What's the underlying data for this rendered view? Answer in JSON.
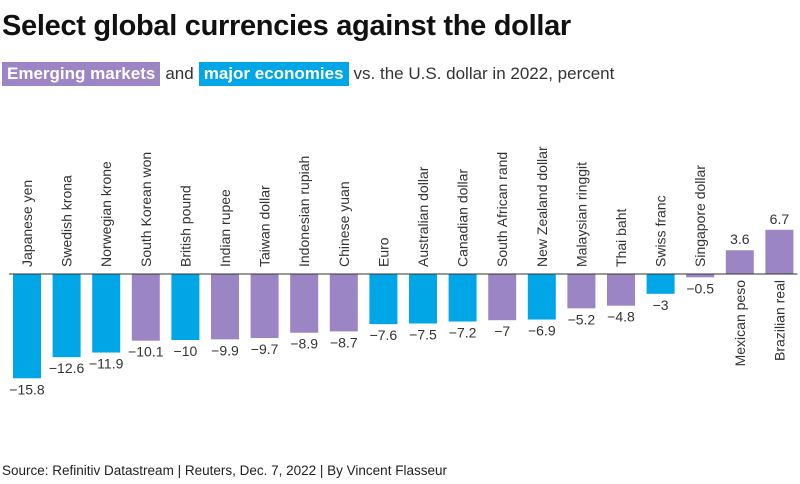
{
  "title": "Select global currencies against the dollar",
  "subtitle": {
    "emerging_label": "Emerging markets",
    "connector": "and",
    "major_label": "major economies",
    "rest": "vs. the U.S. dollar in 2022, percent"
  },
  "source": "Source: Refinitiv Datastream | Reuters, Dec. 7, 2022 | By Vincent Flasseur",
  "colors": {
    "emerging": "#9b85c4",
    "major": "#00a6e6",
    "axis": "#333333",
    "label": "#333333"
  },
  "chart_data": {
    "type": "bar",
    "title": "Select global currencies against the dollar",
    "ylabel": "",
    "xlabel": "",
    "ylim": [
      -15.8,
      6.7
    ],
    "grid": false,
    "legend": "subtitle",
    "categories": [
      "Japanese yen",
      "Swedish krona",
      "Norwegian krone",
      "South Korean won",
      "British pound",
      "Indian rupee",
      "Taiwan dollar",
      "Indonesian rupiah",
      "Chinese yuan",
      "Euro",
      "Australian dollar",
      "Canadian dollar",
      "South African rand",
      "New Zealand dollar",
      "Malaysian ringgit",
      "Thai baht",
      "Swiss franc",
      "Singapore dollar",
      "Mexican peso",
      "Brazilian real"
    ],
    "values": [
      -15.8,
      -12.6,
      -11.9,
      -10.1,
      -10,
      -9.9,
      -9.7,
      -8.9,
      -8.7,
      -7.6,
      -7.5,
      -7.2,
      -7,
      -6.9,
      -5.2,
      -4.8,
      -3,
      -0.5,
      3.6,
      6.7
    ],
    "value_labels": [
      "−15.8",
      "−12.6",
      "−11.9",
      "−10.1",
      "−10",
      "−9.9",
      "−9.7",
      "−8.9",
      "−8.7",
      "−7.6",
      "−7.5",
      "−7.2",
      "−7",
      "−6.9",
      "−5.2",
      "−4.8",
      "−3",
      "−0.5",
      "3.6",
      "6.7"
    ],
    "groups": [
      "major",
      "major",
      "major",
      "emerging",
      "major",
      "emerging",
      "emerging",
      "emerging",
      "emerging",
      "major",
      "major",
      "major",
      "emerging",
      "major",
      "emerging",
      "emerging",
      "major",
      "emerging",
      "emerging",
      "emerging"
    ],
    "series": [
      {
        "name": "Emerging markets",
        "group": "emerging"
      },
      {
        "name": "major economies",
        "group": "major"
      }
    ]
  }
}
